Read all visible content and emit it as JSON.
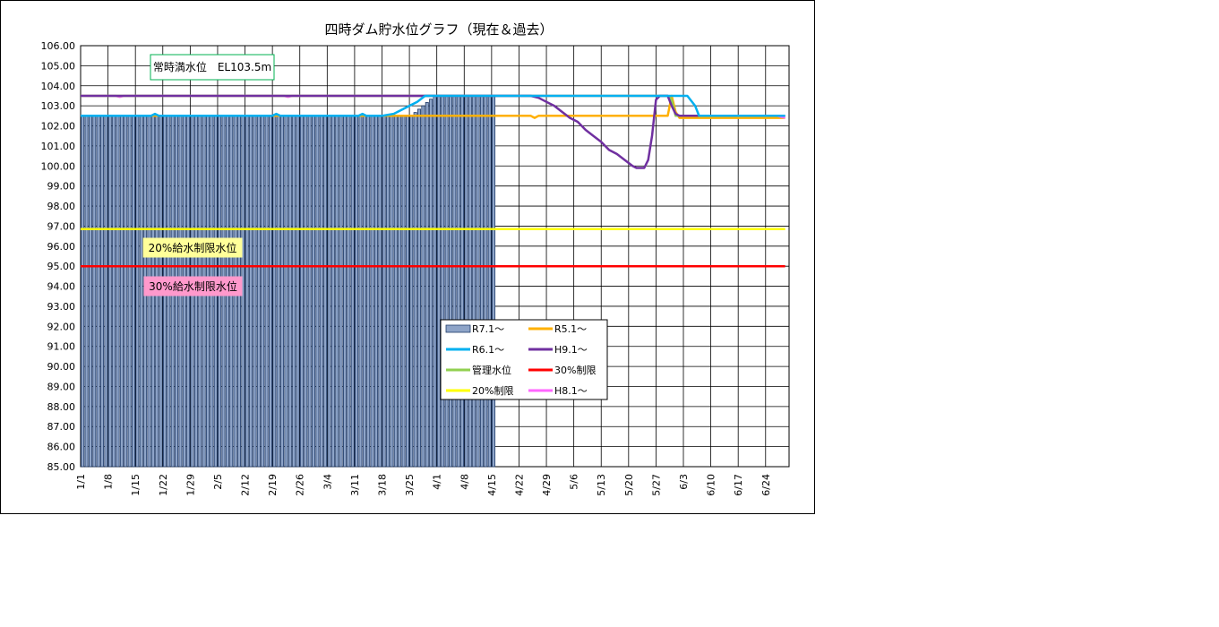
{
  "chart_data": {
    "type": "line",
    "title": "四時ダム貯水位グラフ（現在＆過去）",
    "xlabel": "",
    "ylabel": "",
    "ylim": [
      85,
      106
    ],
    "y_step": 1,
    "x_tick_labels": [
      "1/1",
      "1/8",
      "1/15",
      "1/22",
      "1/29",
      "2/5",
      "2/12",
      "2/19",
      "2/26",
      "3/4",
      "3/11",
      "3/18",
      "3/25",
      "4/1",
      "4/8",
      "4/15",
      "4/22",
      "4/29",
      "5/6",
      "5/13",
      "5/20",
      "5/27",
      "6/3",
      "6/10",
      "6/17",
      "6/24"
    ],
    "day_count": 181,
    "legend_position": "center-right",
    "bar_series": {
      "name": "R7.1～",
      "color": "#1f3a68",
      "fill": "#8ea4c8",
      "base": 85,
      "segments": [
        {
          "from_day": 0,
          "to_day": 84,
          "y0": 102.5,
          "y1": 102.5
        },
        {
          "from_day": 84,
          "to_day": 90,
          "y0": 102.5,
          "y1": 103.5
        },
        {
          "from_day": 90,
          "to_day": 106,
          "y0": 103.5,
          "y1": 103.5
        }
      ]
    },
    "series": [
      {
        "name": "R5.1～",
        "color": "#ffb000",
        "points": [
          [
            0,
            102.5
          ],
          [
            115,
            102.5
          ],
          [
            116,
            102.4
          ],
          [
            117,
            102.5
          ],
          [
            150,
            102.5
          ],
          [
            151,
            103.5
          ],
          [
            152,
            102.7
          ],
          [
            153,
            102.4
          ],
          [
            180,
            102.4
          ]
        ]
      },
      {
        "name": "R6.1～",
        "color": "#00b0f0",
        "points": [
          [
            0,
            102.5
          ],
          [
            18,
            102.5
          ],
          [
            19,
            102.6
          ],
          [
            20,
            102.5
          ],
          [
            49,
            102.5
          ],
          [
            50,
            102.6
          ],
          [
            51,
            102.5
          ],
          [
            71,
            102.5
          ],
          [
            72,
            102.6
          ],
          [
            73,
            102.5
          ],
          [
            77,
            102.5
          ],
          [
            80,
            102.6
          ],
          [
            82,
            102.8
          ],
          [
            84,
            103.0
          ],
          [
            86,
            103.2
          ],
          [
            88,
            103.5
          ],
          [
            100,
            103.5
          ],
          [
            150,
            103.5
          ],
          [
            155,
            103.5
          ],
          [
            157,
            103.0
          ],
          [
            158,
            102.5
          ],
          [
            180,
            102.5
          ]
        ]
      },
      {
        "name": "H9.1～",
        "color": "#7030a0",
        "points": [
          [
            0,
            103.5
          ],
          [
            115,
            103.5
          ],
          [
            117,
            103.4
          ],
          [
            119,
            103.2
          ],
          [
            121,
            103.0
          ],
          [
            123,
            102.7
          ],
          [
            125,
            102.4
          ],
          [
            127,
            102.2
          ],
          [
            129,
            101.8
          ],
          [
            131,
            101.5
          ],
          [
            133,
            101.2
          ],
          [
            135,
            100.8
          ],
          [
            137,
            100.6
          ],
          [
            139,
            100.3
          ],
          [
            141,
            100.0
          ],
          [
            142,
            99.9
          ],
          [
            143,
            99.9
          ],
          [
            144,
            99.9
          ],
          [
            145,
            100.3
          ],
          [
            146,
            101.5
          ],
          [
            147,
            103.3
          ],
          [
            148,
            103.5
          ],
          [
            150,
            103.5
          ],
          [
            151,
            103.0
          ],
          [
            152,
            102.6
          ],
          [
            153,
            102.5
          ],
          [
            180,
            102.5
          ]
        ]
      },
      {
        "name": "管理水位",
        "color": "#92d050",
        "points": [
          [
            0,
            103.5
          ],
          [
            150,
            103.5
          ],
          [
            151,
            103.3
          ],
          [
            152,
            102.5
          ],
          [
            180,
            102.5
          ]
        ]
      },
      {
        "name": "30%制限",
        "color": "#ff0000",
        "points": [
          [
            0,
            95.0
          ],
          [
            180,
            95.0
          ]
        ]
      },
      {
        "name": "20%制限",
        "color": "#ffff00",
        "points": [
          [
            0,
            96.85
          ],
          [
            180,
            96.85
          ]
        ]
      },
      {
        "name": "H8.1～",
        "color": "#ff66ff",
        "points": [
          [
            0,
            103.5
          ],
          [
            9,
            103.5
          ],
          [
            10,
            103.45
          ],
          [
            11,
            103.5
          ],
          [
            52,
            103.5
          ],
          [
            53,
            103.45
          ],
          [
            54,
            103.5
          ],
          [
            150,
            103.5
          ],
          [
            152,
            102.6
          ],
          [
            153,
            102.5
          ],
          [
            178,
            102.5
          ],
          [
            180,
            102.4
          ]
        ]
      }
    ],
    "annotations": [
      {
        "id": "full",
        "text": "常時満水位　EL103.5m",
        "border": "#00b050",
        "fill": "#ffffff"
      },
      {
        "id": "r20",
        "text": "20%給水制限水位",
        "border": "#ffff99",
        "fill": "#ffff99"
      },
      {
        "id": "r30",
        "text": "30%給水制限水位",
        "border": "#ff99cc",
        "fill": "#ff99cc"
      }
    ],
    "legend": [
      {
        "label": "R7.1～",
        "kind": "bar",
        "color": "#8ea4c8"
      },
      {
        "label": "R5.1～",
        "kind": "line",
        "color": "#ffb000"
      },
      {
        "label": "R6.1～",
        "kind": "line",
        "color": "#00b0f0"
      },
      {
        "label": "H9.1～",
        "kind": "line",
        "color": "#7030a0"
      },
      {
        "label": "管理水位",
        "kind": "line",
        "color": "#92d050"
      },
      {
        "label": "30%制限",
        "kind": "line",
        "color": "#ff0000"
      },
      {
        "label": "20%制限",
        "kind": "line",
        "color": "#ffff00"
      },
      {
        "label": "H8.1～",
        "kind": "line",
        "color": "#ff66ff"
      }
    ]
  }
}
